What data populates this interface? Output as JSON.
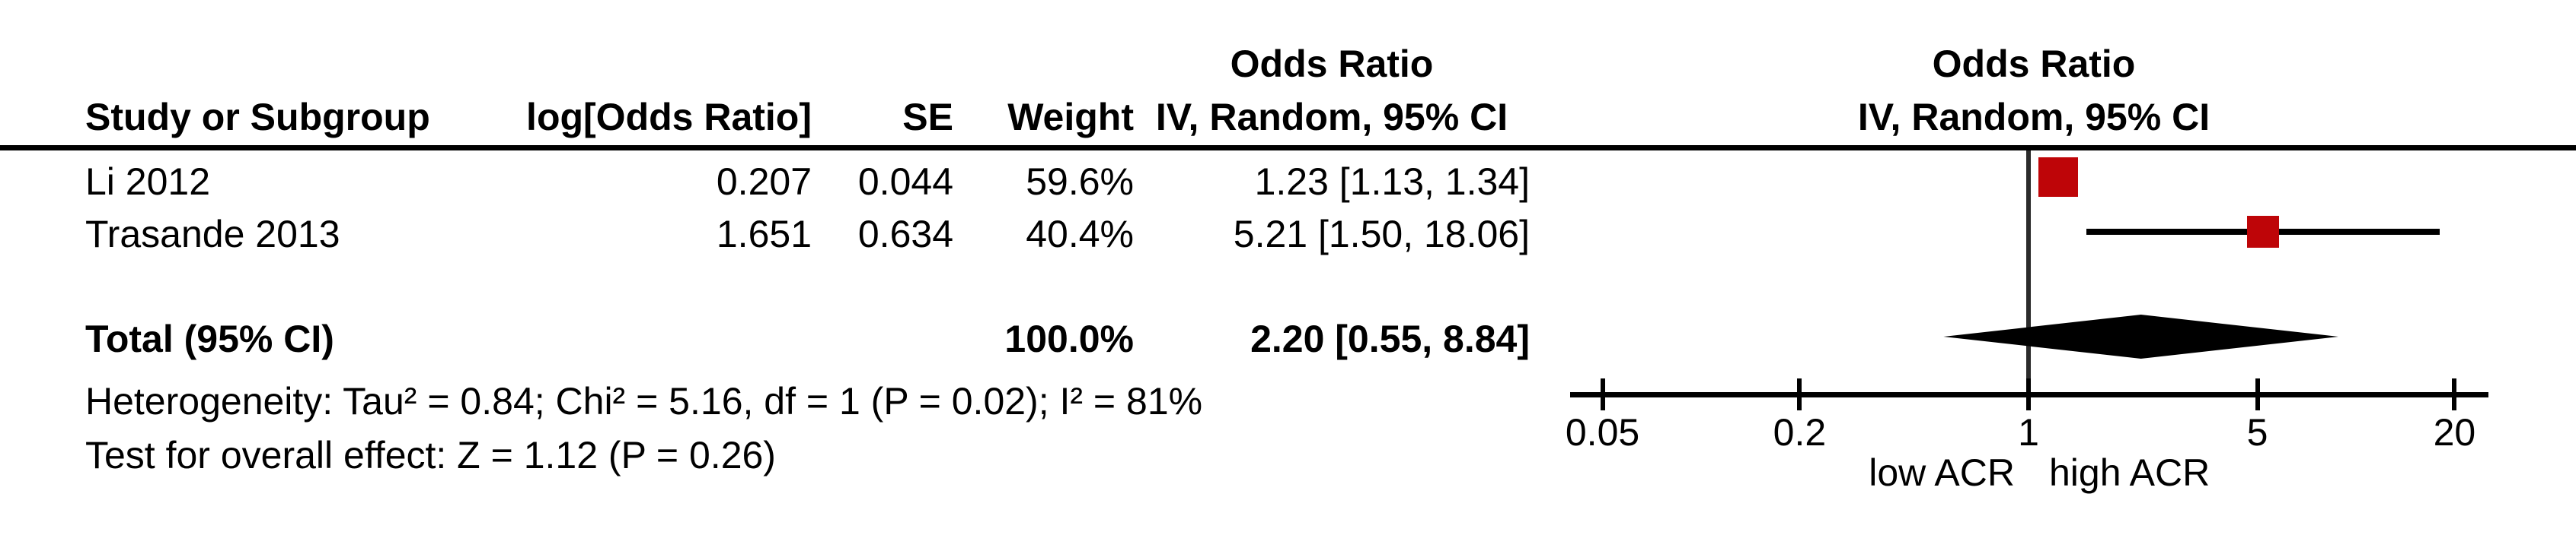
{
  "table": {
    "headers": {
      "study": "Study or Subgroup",
      "log_or": "log[Odds Ratio]",
      "se": "SE",
      "weight": "Weight",
      "effect": "Odds Ratio",
      "method_ci": "IV, Random, 95% CI"
    }
  },
  "chart_data": {
    "type": "scatter",
    "subtype": "forest-plot-meta-analysis",
    "effect_measure": "Odds Ratio",
    "model": "IV, Random, 95% CI",
    "x_scale": "log",
    "studies": [
      {
        "name": "Li 2012",
        "log_or": "0.207",
        "se": "0.044",
        "weight": "59.6%",
        "ci_text": "1.23 [1.13, 1.34]",
        "or": 1.23,
        "ci_low": 1.13,
        "ci_high": 1.34,
        "weight_pct": 59.6
      },
      {
        "name": "Trasande 2013",
        "log_or": "1.651",
        "se": "0.634",
        "weight": "40.4%",
        "ci_text": "5.21 [1.50, 18.06]",
        "or": 5.21,
        "ci_low": 1.5,
        "ci_high": 18.06,
        "weight_pct": 40.4
      }
    ],
    "total": {
      "label": "Total (95% CI)",
      "weight": "100.0%",
      "ci_text": "2.20 [0.55, 8.84]",
      "or": 2.2,
      "ci_low": 0.55,
      "ci_high": 8.84
    },
    "heterogeneity": "Heterogeneity: Tau² = 0.84; Chi² = 5.16, df = 1 (P = 0.02); I² = 81%",
    "overall_effect": "Test for overall effect: Z = 1.12 (P = 0.26)",
    "axis": {
      "ticks": [
        {
          "v": 0.05,
          "label": "0.05"
        },
        {
          "v": 0.2,
          "label": "0.2"
        },
        {
          "v": 1,
          "label": "1"
        },
        {
          "v": 5,
          "label": "5"
        },
        {
          "v": 20,
          "label": "20"
        }
      ],
      "left_label": "low ACR",
      "right_label": "high ACR"
    },
    "colors": {
      "marker": "#be0508",
      "diamond": "#000000",
      "axis": "#000000",
      "null_line": "#2b2b2b"
    }
  }
}
